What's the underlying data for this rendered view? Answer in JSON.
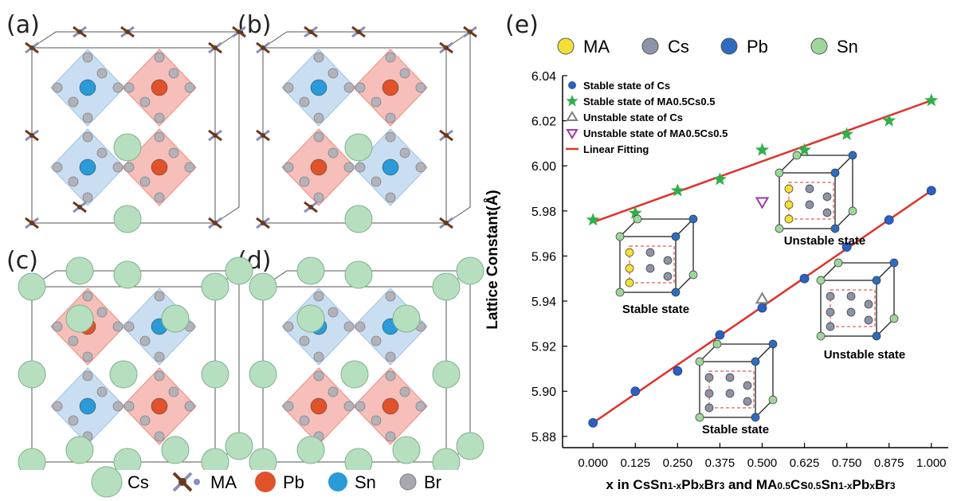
{
  "panels": {
    "a": "(a)",
    "b": "(b)",
    "c": "(c)",
    "d": "(d)",
    "e": "(e)"
  },
  "structure_legend": [
    {
      "label": "Cs",
      "color": "#b6dfc0"
    },
    {
      "label": "MA",
      "color": "#6b3a1e"
    },
    {
      "label": "Pb",
      "color": "#e0522a"
    },
    {
      "label": "Sn",
      "color": "#2a9ad8"
    },
    {
      "label": "Br",
      "color": "#a8a8ad"
    }
  ],
  "atom_legend": [
    {
      "label": "MA",
      "color": "#f4e034"
    },
    {
      "label": "Cs",
      "color": "#8d93a8"
    },
    {
      "label": "Pb",
      "color": "#2d6cc0"
    },
    {
      "label": "Sn",
      "color": "#9fd69b"
    }
  ],
  "insets": {
    "stable_1": "Stable state",
    "unstable_1": "Unstable state",
    "unstable_2": "Unstable state",
    "stable_2": "Stable state"
  },
  "chart_data": {
    "type": "scatter",
    "xlabel": "x in CsSn1-xPbxBr3 and MA0.5Cs0.5Sn1-xPbxBr3",
    "ylabel": "Lattice Constant(Å)",
    "xlim": [
      0.0,
      1.0
    ],
    "ylim": [
      5.875,
      6.04
    ],
    "x_ticks": [
      "0.000",
      "0.125",
      "0.250",
      "0.375",
      "0.500",
      "0.625",
      "0.750",
      "0.875",
      "1.000"
    ],
    "y_ticks": [
      "5.88",
      "5.90",
      "5.92",
      "5.94",
      "5.96",
      "5.98",
      "6.00",
      "6.02",
      "6.04"
    ],
    "grid": false,
    "legend_position": "top-left",
    "series": [
      {
        "name": "Stable state of Cs",
        "marker": "circle",
        "color": "#2d5fc0",
        "x": [
          0.0,
          0.125,
          0.25,
          0.375,
          0.5,
          0.625,
          0.75,
          0.875,
          1.0
        ],
        "y": [
          5.886,
          5.9,
          5.909,
          5.925,
          5.937,
          5.95,
          5.964,
          5.976,
          5.989
        ]
      },
      {
        "name": "Stable state of MA0.5Cs0.5",
        "marker": "star",
        "color": "#2fb04a",
        "x": [
          0.0,
          0.125,
          0.25,
          0.375,
          0.5,
          0.625,
          0.75,
          0.875,
          1.0
        ],
        "y": [
          5.976,
          5.979,
          5.989,
          5.994,
          6.007,
          6.007,
          6.014,
          6.02,
          6.029
        ]
      },
      {
        "name": "Unstable state of Cs",
        "marker": "triangle-up",
        "color": "#808080",
        "x": [
          0.5
        ],
        "y": [
          5.941
        ]
      },
      {
        "name": "Unstable state of MA0.5Cs0.5",
        "marker": "triangle-down",
        "color": "#9b3aa8",
        "x": [
          0.5
        ],
        "y": [
          5.984
        ]
      },
      {
        "name": "Linear Fitting",
        "marker": "line",
        "color": "#e0302a",
        "fits": [
          {
            "x": [
              0.0,
              1.0
            ],
            "y": [
              5.886,
              5.989
            ]
          },
          {
            "x": [
              0.0,
              1.0
            ],
            "y": [
              5.975,
              6.029
            ]
          }
        ]
      }
    ]
  }
}
